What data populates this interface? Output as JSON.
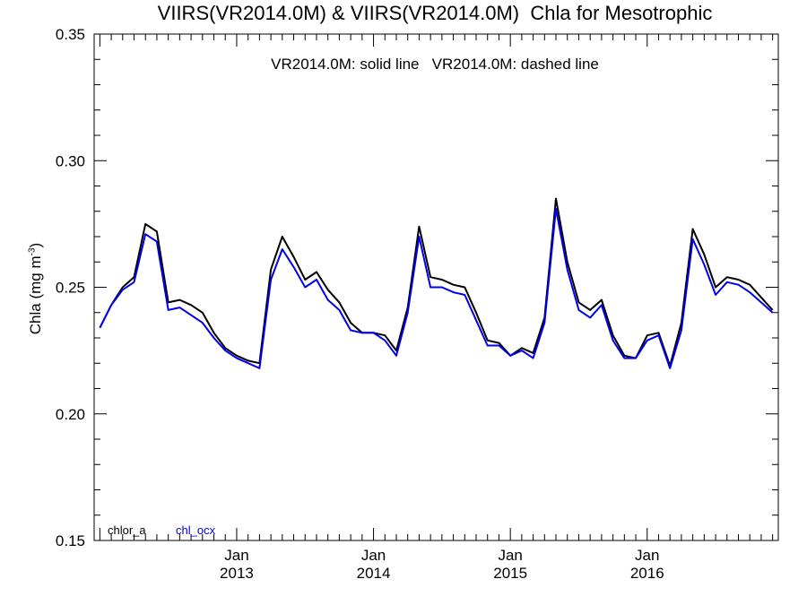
{
  "chart_data": {
    "type": "line",
    "title": "VIIRS(VR2014.0M) & VIIRS(VR2014.0M)  Chla for Mesotrophic",
    "annotation": "VR2014.0M: solid line   VR2014.0M: dashed line",
    "ylabel_main": "Chla (mg m",
    "ylabel_sup": "-3",
    "ylabel_end": ")",
    "xlabel": "",
    "ylim": [
      0.15,
      0.35
    ],
    "yticks": [
      "0.15",
      "0.20",
      "0.25",
      "0.30",
      "0.35"
    ],
    "xlim": [
      "2012-01",
      "2016-12"
    ],
    "xticks": [
      {
        "month": "Jan",
        "year": "2013",
        "date": "2013-01"
      },
      {
        "month": "Jan",
        "year": "2014",
        "date": "2014-01"
      },
      {
        "month": "Jan",
        "year": "2015",
        "date": "2015-01"
      },
      {
        "month": "Jan",
        "year": "2016",
        "date": "2016-01"
      }
    ],
    "x": [
      "2012-01",
      "2012-02",
      "2012-03",
      "2012-04",
      "2012-05",
      "2012-06",
      "2012-07",
      "2012-08",
      "2012-09",
      "2012-10",
      "2012-11",
      "2012-12",
      "2013-01",
      "2013-02",
      "2013-03",
      "2013-04",
      "2013-05",
      "2013-06",
      "2013-07",
      "2013-08",
      "2013-09",
      "2013-10",
      "2013-11",
      "2013-12",
      "2014-01",
      "2014-02",
      "2014-03",
      "2014-04",
      "2014-05",
      "2014-06",
      "2014-07",
      "2014-08",
      "2014-09",
      "2014-10",
      "2014-11",
      "2014-12",
      "2015-01",
      "2015-02",
      "2015-03",
      "2015-04",
      "2015-05",
      "2015-06",
      "2015-07",
      "2015-08",
      "2015-09",
      "2015-10",
      "2015-11",
      "2015-12",
      "2016-01",
      "2016-02",
      "2016-03",
      "2016-04",
      "2016-05",
      "2016-06",
      "2016-07",
      "2016-08",
      "2016-09",
      "2016-10",
      "2016-11",
      "2016-12"
    ],
    "series": [
      {
        "name": "chlor_a",
        "color": "#000000",
        "values": [
          0.234,
          0.243,
          0.25,
          0.254,
          0.275,
          0.272,
          0.244,
          0.245,
          0.243,
          0.24,
          0.232,
          0.226,
          0.223,
          0.221,
          0.22,
          0.257,
          0.27,
          0.262,
          0.253,
          0.256,
          0.249,
          0.244,
          0.236,
          0.232,
          0.232,
          0.231,
          0.225,
          0.242,
          0.274,
          0.254,
          0.253,
          0.251,
          0.25,
          0.24,
          0.229,
          0.228,
          0.223,
          0.226,
          0.224,
          0.238,
          0.285,
          0.26,
          0.244,
          0.241,
          0.245,
          0.231,
          0.223,
          0.222,
          0.231,
          0.232,
          0.219,
          0.236,
          0.273,
          0.263,
          0.25,
          0.254,
          0.253,
          0.251,
          0.246,
          0.241
        ]
      },
      {
        "name": "chl_ocx",
        "color": "#0000ee",
        "values": [
          0.234,
          0.243,
          0.249,
          0.252,
          0.271,
          0.268,
          0.241,
          0.242,
          0.239,
          0.236,
          0.23,
          0.225,
          0.222,
          0.22,
          0.218,
          0.253,
          0.265,
          0.258,
          0.25,
          0.253,
          0.245,
          0.241,
          0.233,
          0.232,
          0.232,
          0.229,
          0.223,
          0.24,
          0.27,
          0.25,
          0.25,
          0.248,
          0.247,
          0.237,
          0.227,
          0.227,
          0.223,
          0.225,
          0.222,
          0.236,
          0.281,
          0.257,
          0.241,
          0.238,
          0.243,
          0.229,
          0.222,
          0.222,
          0.229,
          0.231,
          0.218,
          0.233,
          0.269,
          0.259,
          0.247,
          0.252,
          0.251,
          0.248,
          0.244,
          0.24
        ]
      }
    ],
    "legend_placement": "bottom-left",
    "grid": false
  }
}
